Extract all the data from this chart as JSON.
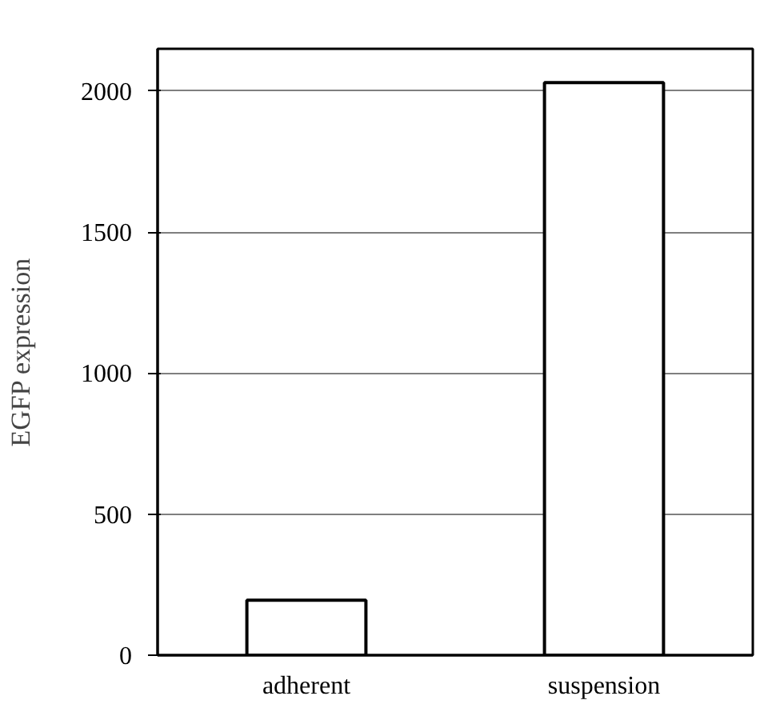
{
  "chart_data": {
    "type": "bar",
    "ylabel": "EGFP expression",
    "categories": [
      "adherent",
      "suspension"
    ],
    "values": [
      195,
      2030
    ],
    "color": "#ffffff",
    "ylim": [
      0,
      2150
    ],
    "yticks": [
      0,
      500,
      1000,
      1500,
      2000
    ],
    "grid": "y"
  }
}
